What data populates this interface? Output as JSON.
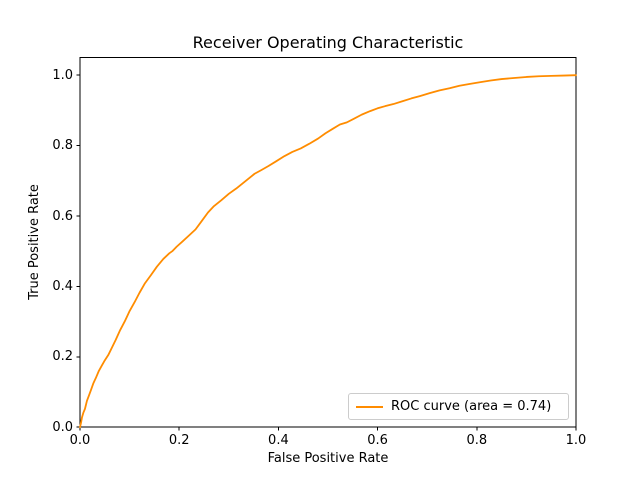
{
  "accent_color": "#ff8c00",
  "chart_data": {
    "type": "line",
    "title": "Receiver Operating Characteristic",
    "xlabel": "False Positive Rate",
    "ylabel": "True Positive Rate",
    "xlim": [
      0.0,
      1.0
    ],
    "ylim": [
      0.0,
      1.05
    ],
    "grid": false,
    "x_ticks": [
      0.0,
      0.2,
      0.4,
      0.6,
      0.8,
      1.0
    ],
    "x_tick_labels": [
      "0.0",
      "0.2",
      "0.4",
      "0.6",
      "0.8",
      "1.0"
    ],
    "y_ticks": [
      0.0,
      0.2,
      0.4,
      0.6,
      0.8,
      1.0
    ],
    "y_tick_labels": [
      "0.0",
      "0.2",
      "0.4",
      "0.6",
      "0.8",
      "1.0"
    ],
    "legend_position": "lower right",
    "series": [
      {
        "name": "ROC curve (area = 0.74)",
        "color": "#ff8c00",
        "auc": 0.74,
        "points": [
          [
            0.0,
            0.0
          ],
          [
            0.002,
            0.012
          ],
          [
            0.004,
            0.028
          ],
          [
            0.007,
            0.042
          ],
          [
            0.01,
            0.052
          ],
          [
            0.014,
            0.075
          ],
          [
            0.018,
            0.09
          ],
          [
            0.022,
            0.105
          ],
          [
            0.027,
            0.125
          ],
          [
            0.032,
            0.14
          ],
          [
            0.038,
            0.16
          ],
          [
            0.044,
            0.175
          ],
          [
            0.05,
            0.19
          ],
          [
            0.057,
            0.205
          ],
          [
            0.064,
            0.225
          ],
          [
            0.072,
            0.248
          ],
          [
            0.081,
            0.276
          ],
          [
            0.09,
            0.3
          ],
          [
            0.1,
            0.33
          ],
          [
            0.11,
            0.355
          ],
          [
            0.12,
            0.382
          ],
          [
            0.131,
            0.409
          ],
          [
            0.143,
            0.432
          ],
          [
            0.155,
            0.456
          ],
          [
            0.168,
            0.478
          ],
          [
            0.18,
            0.494
          ],
          [
            0.186,
            0.5
          ],
          [
            0.195,
            0.513
          ],
          [
            0.207,
            0.528
          ],
          [
            0.22,
            0.545
          ],
          [
            0.233,
            0.562
          ],
          [
            0.245,
            0.585
          ],
          [
            0.258,
            0.61
          ],
          [
            0.27,
            0.628
          ],
          [
            0.285,
            0.645
          ],
          [
            0.3,
            0.663
          ],
          [
            0.315,
            0.678
          ],
          [
            0.33,
            0.695
          ],
          [
            0.345,
            0.712
          ],
          [
            0.352,
            0.72
          ],
          [
            0.365,
            0.73
          ],
          [
            0.38,
            0.742
          ],
          [
            0.395,
            0.755
          ],
          [
            0.412,
            0.77
          ],
          [
            0.428,
            0.782
          ],
          [
            0.445,
            0.792
          ],
          [
            0.462,
            0.805
          ],
          [
            0.48,
            0.82
          ],
          [
            0.495,
            0.835
          ],
          [
            0.51,
            0.848
          ],
          [
            0.524,
            0.86
          ],
          [
            0.538,
            0.866
          ],
          [
            0.552,
            0.876
          ],
          [
            0.568,
            0.888
          ],
          [
            0.585,
            0.898
          ],
          [
            0.6,
            0.906
          ],
          [
            0.615,
            0.912
          ],
          [
            0.632,
            0.918
          ],
          [
            0.65,
            0.926
          ],
          [
            0.668,
            0.934
          ],
          [
            0.686,
            0.941
          ],
          [
            0.705,
            0.949
          ],
          [
            0.725,
            0.957
          ],
          [
            0.745,
            0.963
          ],
          [
            0.765,
            0.97
          ],
          [
            0.785,
            0.975
          ],
          [
            0.806,
            0.98
          ],
          [
            0.828,
            0.985
          ],
          [
            0.85,
            0.989
          ],
          [
            0.875,
            0.992
          ],
          [
            0.9,
            0.995
          ],
          [
            0.925,
            0.997
          ],
          [
            0.95,
            0.998
          ],
          [
            0.975,
            0.999
          ],
          [
            1.0,
            1.0
          ]
        ]
      }
    ]
  }
}
